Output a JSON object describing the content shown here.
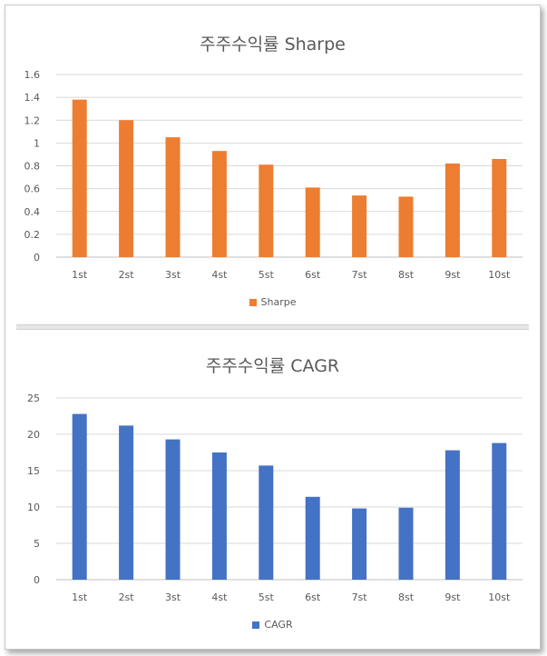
{
  "chart_data": [
    {
      "type": "bar",
      "title": "주주수익률 Sharpe",
      "categories": [
        "1st",
        "2st",
        "3st",
        "4st",
        "5st",
        "6st",
        "7st",
        "8st",
        "9st",
        "10st"
      ],
      "series": [
        {
          "name": "Sharpe",
          "values": [
            1.38,
            1.2,
            1.05,
            0.93,
            0.81,
            0.61,
            0.54,
            0.53,
            0.82,
            0.86
          ],
          "color": "#ED7D31"
        }
      ],
      "ylim": [
        0,
        1.6
      ],
      "yticks": [
        "0",
        "0.2",
        "0.4",
        "0.6",
        "0.8",
        "1",
        "1.2",
        "1.4",
        "1.6"
      ],
      "grid": true,
      "legend": "bottom"
    },
    {
      "type": "bar",
      "title": "주주수익률 CAGR",
      "categories": [
        "1st",
        "2st",
        "3st",
        "4st",
        "5st",
        "6st",
        "7st",
        "8st",
        "9st",
        "10st"
      ],
      "series": [
        {
          "name": "CAGR",
          "values": [
            22.8,
            21.2,
            19.3,
            17.5,
            15.7,
            11.4,
            9.8,
            9.9,
            17.8,
            18.8
          ],
          "color": "#4472C4"
        }
      ],
      "ylim": [
        0,
        25
      ],
      "yticks": [
        "0",
        "5",
        "10",
        "15",
        "20",
        "25"
      ],
      "grid": true,
      "legend": "bottom"
    }
  ],
  "colors": {
    "grid": "#d9d9d9",
    "axis": "#bfbfbf",
    "text": "#595959"
  }
}
